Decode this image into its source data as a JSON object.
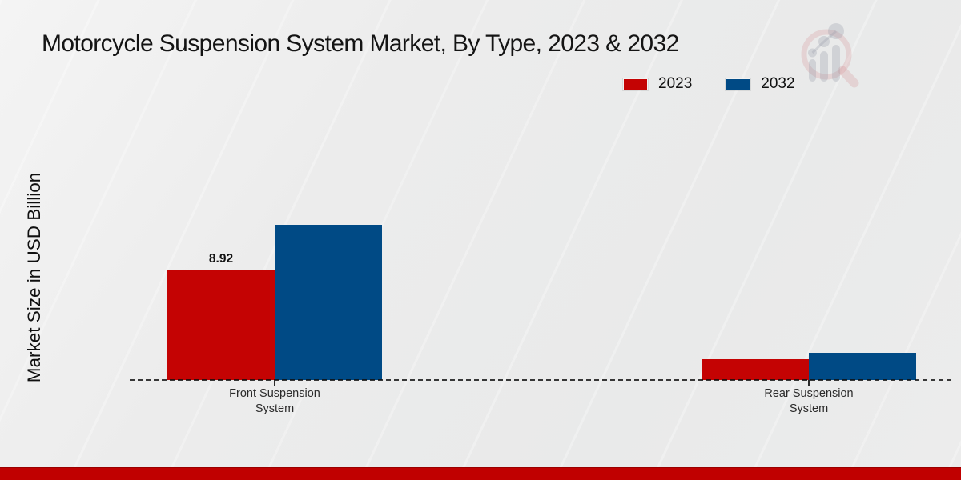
{
  "header": {
    "title": "Motorcycle Suspension System Market, By Type, 2023 & 2032"
  },
  "axes": {
    "y_label": "Market Size in USD Billion"
  },
  "legend": {
    "items": [
      {
        "label": "2023",
        "color": "#c40303"
      },
      {
        "label": "2032",
        "color": "#004a85"
      }
    ]
  },
  "watermark": {
    "icon": "magnifier-bar-chart-logo"
  },
  "footer": {
    "accent_color": "#c00000"
  },
  "chart_data": {
    "type": "bar",
    "title": "Motorcycle Suspension System Market, By Type, 2023 & 2032",
    "xlabel": "",
    "ylabel": "Market Size in USD Billion",
    "categories": [
      "Front Suspension System",
      "Rear Suspension System"
    ],
    "series": [
      {
        "name": "2023",
        "color": "#c40303",
        "values": [
          8.92,
          1.7
        ]
      },
      {
        "name": "2032",
        "color": "#004a85",
        "values": [
          12.6,
          2.2
        ]
      }
    ],
    "annotations": [
      {
        "series_index": 0,
        "category_index": 0,
        "text": "8.92"
      }
    ],
    "ylim": [
      0,
      14
    ],
    "grid": false,
    "legend_position": "top-right",
    "baseline_style": "dashed"
  }
}
